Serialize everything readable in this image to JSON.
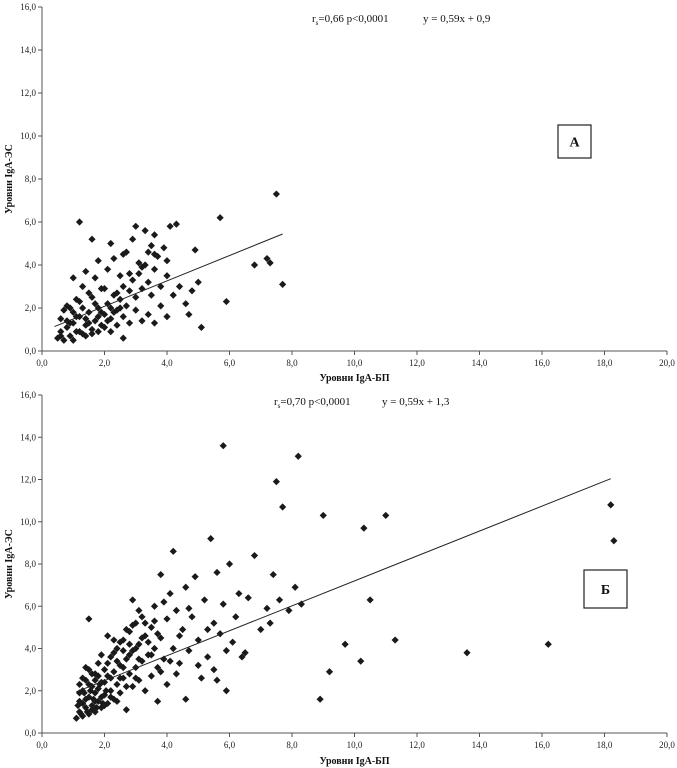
{
  "chart_data": [
    {
      "type": "scatter",
      "panel": "А",
      "xlabel": "Уровни IgA-БП",
      "ylabel": "Уровни IgA-ЭС",
      "xlim": [
        0,
        20
      ],
      "ylim": [
        0,
        16
      ],
      "x_ticks": [
        "0,0",
        "2,0",
        "4,0",
        "6,0",
        "8,0",
        "10,0",
        "12,0",
        "14,0",
        "16,0",
        "18,0",
        "20,0"
      ],
      "y_ticks": [
        "0,0",
        "2,0",
        "4,0",
        "6,0",
        "8,0",
        "10,0",
        "12,0",
        "14,0",
        "16,0"
      ],
      "stats": {
        "r_prefix": "r",
        "r_sub": "s",
        "r_rest": "=0,66  p<0,0001",
        "equation": "y = 0,59x + 0,9"
      },
      "trendline": {
        "slope": 0.59,
        "intercept": 0.9,
        "x_range": [
          0.4,
          7.7
        ]
      },
      "points": [
        [
          0.5,
          0.6
        ],
        [
          0.6,
          0.9
        ],
        [
          0.7,
          0.5
        ],
        [
          0.8,
          1.1
        ],
        [
          0.9,
          0.7
        ],
        [
          1.0,
          1.3
        ],
        [
          1.1,
          0.9
        ],
        [
          1.2,
          1.6
        ],
        [
          1.3,
          0.8
        ],
        [
          1.4,
          1.2
        ],
        [
          1.5,
          1.8
        ],
        [
          1.6,
          1.0
        ],
        [
          1.7,
          1.4
        ],
        [
          1.8,
          2.0
        ],
        [
          1.9,
          1.2
        ],
        [
          2.0,
          1.7
        ],
        [
          2.1,
          2.2
        ],
        [
          2.2,
          1.5
        ],
        [
          2.3,
          2.6
        ],
        [
          2.4,
          1.9
        ],
        [
          2.5,
          2.4
        ],
        [
          2.6,
          3.0
        ],
        [
          2.7,
          2.1
        ],
        [
          2.8,
          2.8
        ],
        [
          2.9,
          3.3
        ],
        [
          3.0,
          2.5
        ],
        [
          3.1,
          3.6
        ],
        [
          3.2,
          2.9
        ],
        [
          3.3,
          4.0
        ],
        [
          3.4,
          3.2
        ],
        [
          3.5,
          2.6
        ],
        [
          3.6,
          3.8
        ],
        [
          3.7,
          4.4
        ],
        [
          3.8,
          3.0
        ],
        [
          3.9,
          4.8
        ],
        [
          4.0,
          3.5
        ],
        [
          0.9,
          2.0
        ],
        [
          1.1,
          2.4
        ],
        [
          1.3,
          3.0
        ],
        [
          1.5,
          2.7
        ],
        [
          1.7,
          3.4
        ],
        [
          1.9,
          2.9
        ],
        [
          2.1,
          3.8
        ],
        [
          2.3,
          4.3
        ],
        [
          2.5,
          3.5
        ],
        [
          2.7,
          4.6
        ],
        [
          2.9,
          5.2
        ],
        [
          3.1,
          4.1
        ],
        [
          3.3,
          5.6
        ],
        [
          3.5,
          4.9
        ],
        [
          1.2,
          6.0
        ],
        [
          1.6,
          5.2
        ],
        [
          2.2,
          5.0
        ],
        [
          3.0,
          5.8
        ],
        [
          3.6,
          5.4
        ],
        [
          4.1,
          5.8
        ],
        [
          4.3,
          5.9
        ],
        [
          4.4,
          3.0
        ],
        [
          4.6,
          2.2
        ],
        [
          4.8,
          2.8
        ],
        [
          4.9,
          4.7
        ],
        [
          5.0,
          3.2
        ],
        [
          5.1,
          1.1
        ],
        [
          4.7,
          1.7
        ],
        [
          5.7,
          6.2
        ],
        [
          5.9,
          2.3
        ],
        [
          6.8,
          4.0
        ],
        [
          7.2,
          4.3
        ],
        [
          7.3,
          4.1
        ],
        [
          7.5,
          7.3
        ],
        [
          7.7,
          3.1
        ],
        [
          0.6,
          1.5
        ],
        [
          0.8,
          2.1
        ],
        [
          1.0,
          1.8
        ],
        [
          1.2,
          2.3
        ],
        [
          1.4,
          1.5
        ],
        [
          1.6,
          2.5
        ],
        [
          1.8,
          1.6
        ],
        [
          2.0,
          2.9
        ],
        [
          2.2,
          2.0
        ],
        [
          2.4,
          1.2
        ],
        [
          2.6,
          1.6
        ],
        [
          2.8,
          1.3
        ],
        [
          3.0,
          1.9
        ],
        [
          3.2,
          1.4
        ],
        [
          3.4,
          1.7
        ],
        [
          3.6,
          1.3
        ],
        [
          3.8,
          2.1
        ],
        [
          4.0,
          1.6
        ],
        [
          4.2,
          2.6
        ],
        [
          0.7,
          1.9
        ],
        [
          0.9,
          1.3
        ],
        [
          1.1,
          1.6
        ],
        [
          1.3,
          2.0
        ],
        [
          1.5,
          1.3
        ],
        [
          1.7,
          2.2
        ],
        [
          1.9,
          1.8
        ],
        [
          2.1,
          1.4
        ],
        [
          2.3,
          1.8
        ],
        [
          2.5,
          2.0
        ],
        [
          0.6,
          0.7
        ],
        [
          1.0,
          0.5
        ],
        [
          1.4,
          0.7
        ],
        [
          1.8,
          0.9
        ],
        [
          2.2,
          0.9
        ],
        [
          2.6,
          0.6
        ],
        [
          0.8,
          1.4
        ],
        [
          1.2,
          0.9
        ],
        [
          1.6,
          0.8
        ],
        [
          2.0,
          1.1
        ],
        [
          2.4,
          2.7
        ],
        [
          2.8,
          3.6
        ],
        [
          3.2,
          3.9
        ],
        [
          3.6,
          4.5
        ],
        [
          4.0,
          4.2
        ],
        [
          1.0,
          3.4
        ],
        [
          1.4,
          3.7
        ],
        [
          1.8,
          4.2
        ],
        [
          2.6,
          4.5
        ],
        [
          3.4,
          4.6
        ]
      ]
    },
    {
      "type": "scatter",
      "panel": "Б",
      "xlabel": "Уровни IgA-БП",
      "ylabel": "Уровни IgA-ЭС",
      "xlim": [
        0,
        20
      ],
      "ylim": [
        0,
        16
      ],
      "x_ticks": [
        "0,0",
        "2,0",
        "4,0",
        "6,0",
        "8,0",
        "10,0",
        "12,0",
        "14,0",
        "16,0",
        "18,0",
        "20,0"
      ],
      "y_ticks": [
        "0,0",
        "2,0",
        "4,0",
        "6,0",
        "8,0",
        "10,0",
        "12,0",
        "14,0",
        "16,0"
      ],
      "stats": {
        "r_prefix": "r",
        "r_sub": "s",
        "r_rest": "=0,70  p<0,0001",
        "equation": "y = 0,59x + 1,3"
      },
      "trendline": {
        "slope": 0.59,
        "intercept": 1.3,
        "x_range": [
          1.1,
          18.2
        ]
      },
      "points": [
        [
          1.1,
          0.7
        ],
        [
          1.2,
          1.0
        ],
        [
          1.2,
          1.5
        ],
        [
          1.3,
          0.8
        ],
        [
          1.3,
          2.0
        ],
        [
          1.4,
          1.2
        ],
        [
          1.4,
          2.5
        ],
        [
          1.5,
          0.9
        ],
        [
          1.5,
          1.7
        ],
        [
          1.5,
          3.0
        ],
        [
          1.6,
          1.3
        ],
        [
          1.6,
          2.2
        ],
        [
          1.7,
          1.0
        ],
        [
          1.7,
          1.9
        ],
        [
          1.7,
          2.8
        ],
        [
          1.8,
          1.5
        ],
        [
          1.8,
          3.3
        ],
        [
          1.9,
          1.2
        ],
        [
          1.9,
          2.4
        ],
        [
          2.0,
          1.8
        ],
        [
          2.0,
          3.0
        ],
        [
          2.1,
          1.4
        ],
        [
          2.1,
          2.7
        ],
        [
          2.2,
          2.0
        ],
        [
          2.2,
          3.6
        ],
        [
          2.3,
          1.6
        ],
        [
          2.3,
          2.9
        ],
        [
          2.4,
          2.3
        ],
        [
          2.4,
          4.0
        ],
        [
          2.5,
          1.9
        ],
        [
          2.5,
          3.2
        ],
        [
          2.6,
          2.6
        ],
        [
          2.6,
          4.4
        ],
        [
          2.7,
          1.1
        ],
        [
          2.7,
          3.5
        ],
        [
          2.8,
          2.8
        ],
        [
          2.8,
          4.8
        ],
        [
          2.9,
          2.2
        ],
        [
          2.9,
          3.9
        ],
        [
          3.0,
          3.1
        ],
        [
          3.0,
          5.2
        ],
        [
          3.1,
          2.5
        ],
        [
          3.1,
          4.2
        ],
        [
          3.2,
          3.4
        ],
        [
          3.2,
          5.5
        ],
        [
          3.3,
          2.0
        ],
        [
          3.3,
          4.6
        ],
        [
          3.4,
          3.7
        ],
        [
          3.5,
          2.7
        ],
        [
          3.5,
          5.0
        ],
        [
          3.6,
          4.0
        ],
        [
          3.6,
          6.0
        ],
        [
          3.7,
          1.5
        ],
        [
          3.7,
          3.1
        ],
        [
          3.8,
          4.5
        ],
        [
          3.8,
          7.5
        ],
        [
          3.9,
          3.5
        ],
        [
          4.0,
          5.4
        ],
        [
          4.0,
          2.3
        ],
        [
          4.1,
          6.6
        ],
        [
          4.2,
          4.0
        ],
        [
          4.2,
          8.6
        ],
        [
          4.3,
          2.8
        ],
        [
          4.3,
          5.8
        ],
        [
          4.4,
          3.3
        ],
        [
          4.5,
          4.9
        ],
        [
          4.6,
          1.6
        ],
        [
          4.6,
          6.9
        ],
        [
          4.7,
          3.9
        ],
        [
          4.8,
          5.5
        ],
        [
          4.9,
          7.4
        ],
        [
          5.0,
          4.4
        ],
        [
          5.1,
          2.6
        ],
        [
          5.2,
          6.3
        ],
        [
          5.3,
          3.6
        ],
        [
          5.4,
          9.2
        ],
        [
          5.5,
          5.2
        ],
        [
          5.5,
          3.0
        ],
        [
          5.6,
          7.6
        ],
        [
          5.7,
          4.7
        ],
        [
          5.8,
          13.6
        ],
        [
          5.8,
          6.1
        ],
        [
          5.9,
          3.9
        ],
        [
          5.9,
          2.0
        ],
        [
          6.0,
          8.0
        ],
        [
          6.2,
          5.5
        ],
        [
          6.4,
          3.6
        ],
        [
          6.6,
          6.4
        ],
        [
          6.8,
          8.4
        ],
        [
          7.0,
          4.9
        ],
        [
          7.2,
          5.9
        ],
        [
          7.4,
          7.5
        ],
        [
          7.5,
          11.9
        ],
        [
          7.6,
          6.3
        ],
        [
          7.7,
          10.7
        ],
        [
          7.9,
          5.8
        ],
        [
          8.1,
          6.9
        ],
        [
          8.2,
          13.1
        ],
        [
          8.3,
          6.1
        ],
        [
          8.9,
          1.6
        ],
        [
          9.0,
          10.3
        ],
        [
          9.2,
          2.9
        ],
        [
          9.7,
          4.2
        ],
        [
          10.2,
          3.4
        ],
        [
          10.3,
          9.7
        ],
        [
          10.5,
          6.3
        ],
        [
          11.0,
          10.3
        ],
        [
          11.3,
          4.4
        ],
        [
          13.6,
          3.8
        ],
        [
          16.2,
          4.2
        ],
        [
          18.2,
          10.8
        ],
        [
          18.3,
          9.1
        ],
        [
          1.2,
          1.9
        ],
        [
          1.3,
          2.6
        ],
        [
          1.4,
          1.6
        ],
        [
          1.5,
          2.3
        ],
        [
          1.6,
          1.1
        ],
        [
          1.7,
          2.5
        ],
        [
          1.8,
          2.1
        ],
        [
          1.9,
          1.7
        ],
        [
          2.0,
          2.4
        ],
        [
          2.1,
          3.3
        ],
        [
          2.2,
          2.6
        ],
        [
          2.3,
          3.8
        ],
        [
          2.4,
          1.5
        ],
        [
          2.5,
          4.3
        ],
        [
          2.6,
          3.1
        ],
        [
          2.7,
          4.9
        ],
        [
          2.8,
          3.7
        ],
        [
          2.9,
          6.3
        ],
        [
          3.0,
          4.0
        ],
        [
          3.1,
          3.5
        ],
        [
          3.2,
          4.5
        ],
        [
          3.3,
          5.2
        ],
        [
          3.4,
          4.3
        ],
        [
          3.5,
          3.7
        ],
        [
          3.6,
          5.3
        ],
        [
          3.7,
          4.7
        ],
        [
          3.8,
          2.9
        ],
        [
          3.9,
          6.2
        ],
        [
          1.2,
          2.3
        ],
        [
          1.3,
          1.4
        ],
        [
          1.4,
          3.1
        ],
        [
          1.5,
          5.4
        ],
        [
          1.6,
          2.8
        ],
        [
          1.7,
          1.5
        ],
        [
          1.8,
          2.7
        ],
        [
          1.9,
          3.7
        ],
        [
          2.0,
          1.3
        ],
        [
          2.1,
          4.6
        ],
        [
          2.2,
          1.7
        ],
        [
          2.3,
          4.4
        ],
        [
          2.4,
          3.4
        ],
        [
          2.5,
          2.6
        ],
        [
          2.6,
          3.9
        ],
        [
          2.7,
          2.2
        ],
        [
          2.8,
          4.2
        ],
        [
          2.9,
          5.1
        ],
        [
          3.0,
          2.6
        ],
        [
          3.1,
          5.8
        ],
        [
          4.1,
          3.4
        ],
        [
          4.4,
          4.6
        ],
        [
          4.7,
          5.9
        ],
        [
          5.0,
          3.2
        ],
        [
          5.3,
          4.9
        ],
        [
          5.6,
          2.5
        ],
        [
          6.1,
          4.3
        ],
        [
          6.3,
          6.6
        ],
        [
          6.5,
          3.8
        ],
        [
          7.3,
          5.2
        ],
        [
          1.15,
          1.3
        ],
        [
          1.25,
          0.9
        ],
        [
          1.35,
          1.9
        ],
        [
          1.45,
          1.0
        ],
        [
          1.55,
          2.0
        ],
        [
          1.65,
          1.6
        ],
        [
          1.75,
          1.2
        ],
        [
          1.85,
          2.3
        ],
        [
          1.95,
          1.4
        ],
        [
          2.05,
          2.0
        ]
      ]
    }
  ]
}
